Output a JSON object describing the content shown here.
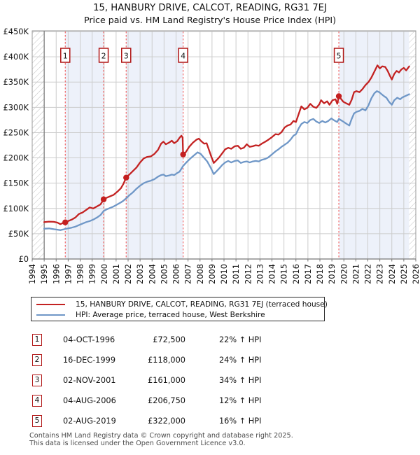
{
  "title": "15, HANBURY DRIVE, CALCOT, READING, RG31 7EJ",
  "subtitle": "Price paid vs. HM Land Registry's House Price Index (HPI)",
  "legend": {
    "items": [
      {
        "label": "15, HANBURY DRIVE, CALCOT, READING, RG31 7EJ (terraced house)",
        "color": "#c32222"
      },
      {
        "label": "HPI: Average price, terraced house, West Berkshire",
        "color": "#6f97c7"
      }
    ]
  },
  "sales_table": {
    "rows": [
      {
        "num": "1",
        "date": "04-OCT-1996",
        "price": "£72,500",
        "vs_hpi": "22% ↑ HPI"
      },
      {
        "num": "2",
        "date": "16-DEC-1999",
        "price": "£118,000",
        "vs_hpi": "24% ↑ HPI"
      },
      {
        "num": "3",
        "date": "02-NOV-2001",
        "price": "£161,000",
        "vs_hpi": "34% ↑ HPI"
      },
      {
        "num": "4",
        "date": "04-AUG-2006",
        "price": "£206,750",
        "vs_hpi": "12% ↑ HPI"
      },
      {
        "num": "5",
        "date": "02-AUG-2019",
        "price": "£322,000",
        "vs_hpi": "16% ↑ HPI"
      }
    ]
  },
  "footer": {
    "line1": "Contains HM Land Registry data © Crown copyright and database right 2025.",
    "line2": "This data is licensed under the Open Government Licence v3.0."
  },
  "chart_data": {
    "type": "line",
    "title": "15, HANBURY DRIVE, CALCOT, READING, RG31 7EJ",
    "subtitle": "Price paid vs. HM Land Registry's House Price Index (HPI)",
    "x_range": [
      1994,
      2026
    ],
    "y_range_gbp": [
      0,
      450000
    ],
    "x_tick_labels": [
      "1994",
      "1995",
      "1996",
      "1997",
      "1998",
      "1999",
      "2000",
      "2001",
      "2002",
      "2003",
      "2004",
      "2005",
      "2006",
      "2007",
      "2008",
      "2009",
      "2010",
      "2011",
      "2012",
      "2013",
      "2014",
      "2015",
      "2016",
      "2017",
      "2018",
      "2019",
      "2020",
      "2021",
      "2022",
      "2023",
      "2024",
      "2025",
      "2026"
    ],
    "y_ticks": [
      {
        "value_k": 0,
        "label": "£0"
      },
      {
        "value_k": 50,
        "label": "£50K"
      },
      {
        "value_k": 100,
        "label": "£100K"
      },
      {
        "value_k": 150,
        "label": "£150K"
      },
      {
        "value_k": 200,
        "label": "£200K"
      },
      {
        "value_k": 250,
        "label": "£250K"
      },
      {
        "value_k": 300,
        "label": "£300K"
      },
      {
        "value_k": 350,
        "label": "£350K"
      },
      {
        "value_k": 400,
        "label": "£400K"
      },
      {
        "value_k": 450,
        "label": "£450K"
      }
    ],
    "grid": true,
    "legend_position": "below",
    "colors": {
      "property_line": "#c32222",
      "hpi_line": "#6f97c7",
      "sale_marker": "#c41f1f",
      "sale_vline": "#f15b5b",
      "numbox_border": "#b01515",
      "band_fill": "#edf1fa",
      "gridline": "#cccccc",
      "hatch_line": "#c0c0c0",
      "axis": "#777777"
    },
    "shaded_bands": [
      {
        "from": 1996.76,
        "to": 1999.96
      },
      {
        "from": 2001.84,
        "to": 2006.59
      },
      {
        "from": 2019.58,
        "to": 2025.44
      }
    ],
    "no_data_hatch": [
      {
        "from": 1994,
        "to": 1995
      },
      {
        "from": 2025.44,
        "to": 2026
      }
    ],
    "sale_markers": [
      {
        "num": "1",
        "year": 1996.76,
        "value_k": 72.5
      },
      {
        "num": "2",
        "year": 1999.96,
        "value_k": 118
      },
      {
        "num": "3",
        "year": 2001.84,
        "value_k": 161
      },
      {
        "num": "4",
        "year": 2006.59,
        "value_k": 206.75
      },
      {
        "num": "5",
        "year": 2019.58,
        "value_k": 322
      }
    ],
    "series": [
      {
        "name": "15, HANBURY DRIVE, CALCOT, READING, RG31 7EJ (terraced house)",
        "color": "#c32222",
        "points": [
          [
            1995.0,
            73
          ],
          [
            1995.4,
            74
          ],
          [
            1995.8,
            73.5
          ],
          [
            1996.1,
            72
          ],
          [
            1996.35,
            69
          ],
          [
            1996.6,
            71.5
          ],
          [
            1996.76,
            72.5
          ],
          [
            1997.0,
            75
          ],
          [
            1997.3,
            78
          ],
          [
            1997.6,
            82
          ],
          [
            1997.9,
            89
          ],
          [
            1998.2,
            92
          ],
          [
            1998.5,
            97
          ],
          [
            1998.8,
            102
          ],
          [
            1999.1,
            100
          ],
          [
            1999.4,
            104
          ],
          [
            1999.7,
            108
          ],
          [
            1999.96,
            118
          ],
          [
            2000.2,
            121
          ],
          [
            2000.5,
            124
          ],
          [
            2000.8,
            127
          ],
          [
            2001.1,
            133
          ],
          [
            2001.4,
            140
          ],
          [
            2001.6,
            148
          ],
          [
            2001.84,
            161
          ],
          [
            2002.1,
            167
          ],
          [
            2002.4,
            174
          ],
          [
            2002.7,
            181
          ],
          [
            2003.0,
            191
          ],
          [
            2003.3,
            199
          ],
          [
            2003.6,
            202
          ],
          [
            2003.9,
            203
          ],
          [
            2004.2,
            208
          ],
          [
            2004.5,
            216
          ],
          [
            2004.75,
            228
          ],
          [
            2004.95,
            232
          ],
          [
            2005.15,
            227
          ],
          [
            2005.4,
            230
          ],
          [
            2005.65,
            234
          ],
          [
            2005.85,
            229
          ],
          [
            2006.1,
            233
          ],
          [
            2006.3,
            240
          ],
          [
            2006.45,
            244
          ],
          [
            2006.55,
            240
          ],
          [
            2006.59,
            206.75
          ],
          [
            2006.8,
            211
          ],
          [
            2007.1,
            222
          ],
          [
            2007.4,
            230
          ],
          [
            2007.7,
            236
          ],
          [
            2007.9,
            238
          ],
          [
            2008.1,
            233
          ],
          [
            2008.35,
            228
          ],
          [
            2008.55,
            229
          ],
          [
            2008.7,
            219
          ],
          [
            2008.9,
            205
          ],
          [
            2009.15,
            190
          ],
          [
            2009.4,
            196
          ],
          [
            2009.6,
            201
          ],
          [
            2009.85,
            209
          ],
          [
            2010.1,
            217
          ],
          [
            2010.35,
            220
          ],
          [
            2010.6,
            218
          ],
          [
            2010.9,
            223
          ],
          [
            2011.15,
            224
          ],
          [
            2011.4,
            218
          ],
          [
            2011.65,
            220
          ],
          [
            2011.9,
            227
          ],
          [
            2012.15,
            222
          ],
          [
            2012.4,
            223
          ],
          [
            2012.65,
            225
          ],
          [
            2012.9,
            224
          ],
          [
            2013.15,
            228
          ],
          [
            2013.45,
            232
          ],
          [
            2013.7,
            236
          ],
          [
            2014.0,
            241
          ],
          [
            2014.3,
            247
          ],
          [
            2014.55,
            246
          ],
          [
            2014.8,
            251
          ],
          [
            2015.05,
            260
          ],
          [
            2015.3,
            264
          ],
          [
            2015.55,
            266
          ],
          [
            2015.8,
            273
          ],
          [
            2016.0,
            271
          ],
          [
            2016.25,
            288
          ],
          [
            2016.45,
            302
          ],
          [
            2016.7,
            296
          ],
          [
            2016.95,
            299
          ],
          [
            2017.2,
            307
          ],
          [
            2017.45,
            301
          ],
          [
            2017.7,
            299
          ],
          [
            2017.95,
            306
          ],
          [
            2018.1,
            314
          ],
          [
            2018.35,
            308
          ],
          [
            2018.6,
            312
          ],
          [
            2018.8,
            305
          ],
          [
            2019.05,
            314
          ],
          [
            2019.3,
            316
          ],
          [
            2019.45,
            307
          ],
          [
            2019.58,
            322
          ],
          [
            2019.75,
            317
          ],
          [
            2019.95,
            311
          ],
          [
            2020.2,
            308
          ],
          [
            2020.45,
            305
          ],
          [
            2020.65,
            315
          ],
          [
            2020.85,
            330
          ],
          [
            2021.05,
            332
          ],
          [
            2021.3,
            330
          ],
          [
            2021.55,
            336
          ],
          [
            2021.8,
            344
          ],
          [
            2022.05,
            350
          ],
          [
            2022.3,
            359
          ],
          [
            2022.55,
            371
          ],
          [
            2022.8,
            383
          ],
          [
            2023.0,
            377
          ],
          [
            2023.2,
            381
          ],
          [
            2023.45,
            380
          ],
          [
            2023.65,
            372
          ],
          [
            2023.85,
            362
          ],
          [
            2024.0,
            355
          ],
          [
            2024.2,
            366
          ],
          [
            2024.4,
            372
          ],
          [
            2024.6,
            369
          ],
          [
            2024.8,
            375
          ],
          [
            2025.0,
            378
          ],
          [
            2025.2,
            373
          ],
          [
            2025.45,
            381
          ]
        ]
      },
      {
        "name": "HPI: Average price, terraced house, West Berkshire",
        "color": "#6f97c7",
        "points": [
          [
            1995.0,
            60
          ],
          [
            1995.4,
            60.5
          ],
          [
            1995.8,
            59
          ],
          [
            1996.1,
            58
          ],
          [
            1996.35,
            57
          ],
          [
            1996.6,
            58.5
          ],
          [
            1996.76,
            59.5
          ],
          [
            1997.0,
            60.5
          ],
          [
            1997.3,
            62
          ],
          [
            1997.6,
            64
          ],
          [
            1997.9,
            67
          ],
          [
            1998.2,
            70
          ],
          [
            1998.5,
            73
          ],
          [
            1998.8,
            75
          ],
          [
            1999.1,
            78
          ],
          [
            1999.4,
            82
          ],
          [
            1999.7,
            87
          ],
          [
            1999.96,
            95
          ],
          [
            2000.2,
            98
          ],
          [
            2000.5,
            101
          ],
          [
            2000.8,
            104
          ],
          [
            2001.1,
            108
          ],
          [
            2001.4,
            112
          ],
          [
            2001.6,
            115
          ],
          [
            2001.84,
            120
          ],
          [
            2002.1,
            126
          ],
          [
            2002.4,
            132
          ],
          [
            2002.7,
            139
          ],
          [
            2003.0,
            145
          ],
          [
            2003.3,
            150
          ],
          [
            2003.6,
            153
          ],
          [
            2003.9,
            155
          ],
          [
            2004.2,
            158
          ],
          [
            2004.5,
            163
          ],
          [
            2004.75,
            166
          ],
          [
            2004.95,
            167
          ],
          [
            2005.15,
            164
          ],
          [
            2005.4,
            165
          ],
          [
            2005.65,
            167
          ],
          [
            2005.85,
            166
          ],
          [
            2006.1,
            170
          ],
          [
            2006.3,
            173
          ],
          [
            2006.59,
            184
          ],
          [
            2006.9,
            192
          ],
          [
            2007.2,
            199
          ],
          [
            2007.5,
            205
          ],
          [
            2007.8,
            211
          ],
          [
            2008.05,
            208
          ],
          [
            2008.3,
            201
          ],
          [
            2008.6,
            193
          ],
          [
            2008.9,
            180
          ],
          [
            2009.15,
            168
          ],
          [
            2009.4,
            174
          ],
          [
            2009.6,
            179
          ],
          [
            2009.85,
            186
          ],
          [
            2010.1,
            191
          ],
          [
            2010.35,
            194
          ],
          [
            2010.6,
            191
          ],
          [
            2010.9,
            194
          ],
          [
            2011.15,
            195
          ],
          [
            2011.4,
            190
          ],
          [
            2011.65,
            192
          ],
          [
            2011.9,
            193
          ],
          [
            2012.15,
            191
          ],
          [
            2012.4,
            193
          ],
          [
            2012.65,
            194
          ],
          [
            2012.9,
            193
          ],
          [
            2013.15,
            196
          ],
          [
            2013.45,
            198
          ],
          [
            2013.7,
            201
          ],
          [
            2014.0,
            207
          ],
          [
            2014.3,
            213
          ],
          [
            2014.55,
            217
          ],
          [
            2014.8,
            222
          ],
          [
            2015.05,
            226
          ],
          [
            2015.3,
            230
          ],
          [
            2015.55,
            236
          ],
          [
            2015.8,
            244
          ],
          [
            2016.0,
            247
          ],
          [
            2016.25,
            259
          ],
          [
            2016.45,
            267
          ],
          [
            2016.7,
            271
          ],
          [
            2016.95,
            269
          ],
          [
            2017.2,
            275
          ],
          [
            2017.45,
            277
          ],
          [
            2017.7,
            272
          ],
          [
            2017.95,
            269
          ],
          [
            2018.2,
            273
          ],
          [
            2018.45,
            270
          ],
          [
            2018.7,
            273
          ],
          [
            2018.95,
            278
          ],
          [
            2019.2,
            274
          ],
          [
            2019.45,
            271
          ],
          [
            2019.58,
            277
          ],
          [
            2019.8,
            274
          ],
          [
            2020.0,
            271
          ],
          [
            2020.25,
            267
          ],
          [
            2020.45,
            264
          ],
          [
            2020.65,
            277
          ],
          [
            2020.85,
            288
          ],
          [
            2021.05,
            291
          ],
          [
            2021.3,
            293
          ],
          [
            2021.55,
            297
          ],
          [
            2021.8,
            294
          ],
          [
            2022.05,
            304
          ],
          [
            2022.3,
            318
          ],
          [
            2022.55,
            328
          ],
          [
            2022.75,
            332
          ],
          [
            2022.95,
            330
          ],
          [
            2023.15,
            326
          ],
          [
            2023.35,
            322
          ],
          [
            2023.55,
            319
          ],
          [
            2023.8,
            310
          ],
          [
            2024.0,
            305
          ],
          [
            2024.2,
            314
          ],
          [
            2024.45,
            319
          ],
          [
            2024.7,
            316
          ],
          [
            2024.9,
            320
          ],
          [
            2025.1,
            322
          ],
          [
            2025.45,
            326
          ]
        ]
      }
    ]
  }
}
